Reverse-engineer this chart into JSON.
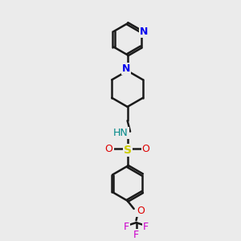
{
  "bg_color": "#ebebeb",
  "bond_color": "#1a1a1a",
  "bond_width": 1.8,
  "N_color": "#0000ee",
  "S_color": "#cccc00",
  "O_color": "#dd0000",
  "F_color": "#cc00cc",
  "NH_color": "#008888",
  "figsize": [
    3.0,
    3.0
  ],
  "dpi": 100,
  "xlim": [
    0,
    10
  ],
  "ylim": [
    0,
    10
  ]
}
